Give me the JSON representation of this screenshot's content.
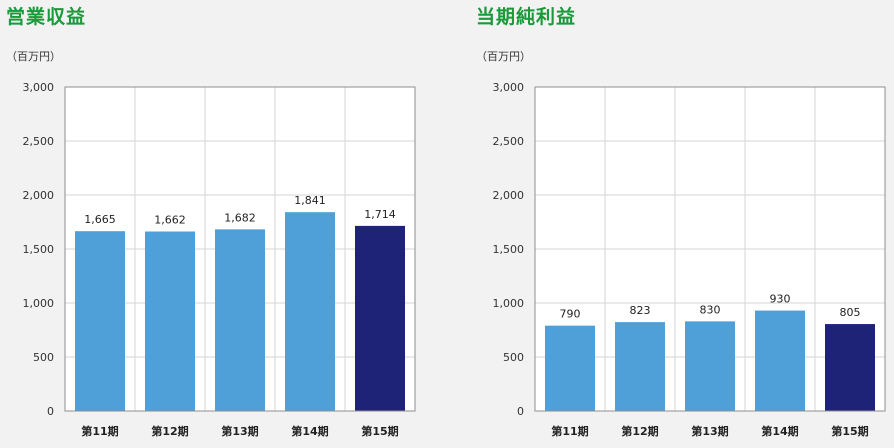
{
  "chart_data": [
    {
      "type": "bar",
      "title": "営業収益",
      "unit": "（百万円）",
      "categories": [
        "第11期",
        "第12期",
        "第13期",
        "第14期",
        "第15期"
      ],
      "values": [
        1665,
        1662,
        1682,
        1841,
        1714
      ],
      "value_labels": [
        "1,665",
        "1,662",
        "1,682",
        "1,841",
        "1,714"
      ],
      "ylim": [
        0,
        3000
      ],
      "yticks": [
        0,
        500,
        1000,
        1500,
        2000,
        2500,
        3000
      ],
      "ytick_labels": [
        "0",
        "500",
        "1,000",
        "1,500",
        "2,000",
        "2,500",
        "3,000"
      ],
      "grid": true,
      "bar_colors": [
        "#4f9fd8",
        "#4f9fd8",
        "#4f9fd8",
        "#4f9fd8",
        "#1e2377"
      ]
    },
    {
      "type": "bar",
      "title": "当期純利益",
      "unit": "（百万円）",
      "categories": [
        "第11期",
        "第12期",
        "第13期",
        "第14期",
        "第15期"
      ],
      "values": [
        790,
        823,
        830,
        930,
        805
      ],
      "value_labels": [
        "790",
        "823",
        "830",
        "930",
        "805"
      ],
      "ylim": [
        0,
        3000
      ],
      "yticks": [
        0,
        500,
        1000,
        1500,
        2000,
        2500,
        3000
      ],
      "ytick_labels": [
        "0",
        "500",
        "1,000",
        "1,500",
        "2,000",
        "2,500",
        "3,000"
      ],
      "grid": true,
      "bar_colors": [
        "#4f9fd8",
        "#4f9fd8",
        "#4f9fd8",
        "#4f9fd8",
        "#1e2377"
      ]
    }
  ],
  "colors": {
    "title": "#1a9a3b",
    "grid": "#d4d4d4",
    "plot_bg": "#ffffff"
  }
}
